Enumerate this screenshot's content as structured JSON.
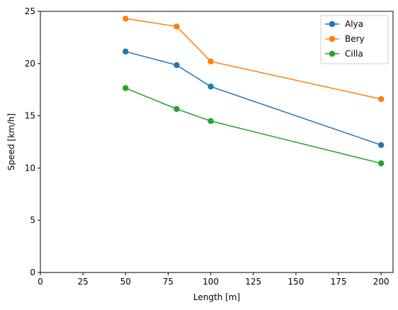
{
  "chart_data": {
    "type": "line",
    "title": "",
    "xlabel": "Length [m]",
    "ylabel": "Speed [km/h]",
    "xlim": [
      0,
      207
    ],
    "ylim": [
      0,
      25
    ],
    "x_ticks": [
      0,
      25,
      50,
      75,
      100,
      125,
      150,
      175,
      200
    ],
    "y_ticks": [
      0,
      5,
      10,
      15,
      20,
      25
    ],
    "x": [
      50,
      80,
      100,
      200
    ],
    "grid": false,
    "legend_position": "top-right",
    "series": [
      {
        "name": "Alya",
        "color": "#1f77b4",
        "values": [
          21.15,
          19.85,
          17.8,
          12.2
        ]
      },
      {
        "name": "Bery",
        "color": "#ff7f0e",
        "values": [
          24.3,
          23.55,
          20.2,
          16.6
        ]
      },
      {
        "name": "Cilla",
        "color": "#2ca02c",
        "values": [
          17.65,
          15.65,
          14.5,
          10.45
        ]
      }
    ]
  }
}
